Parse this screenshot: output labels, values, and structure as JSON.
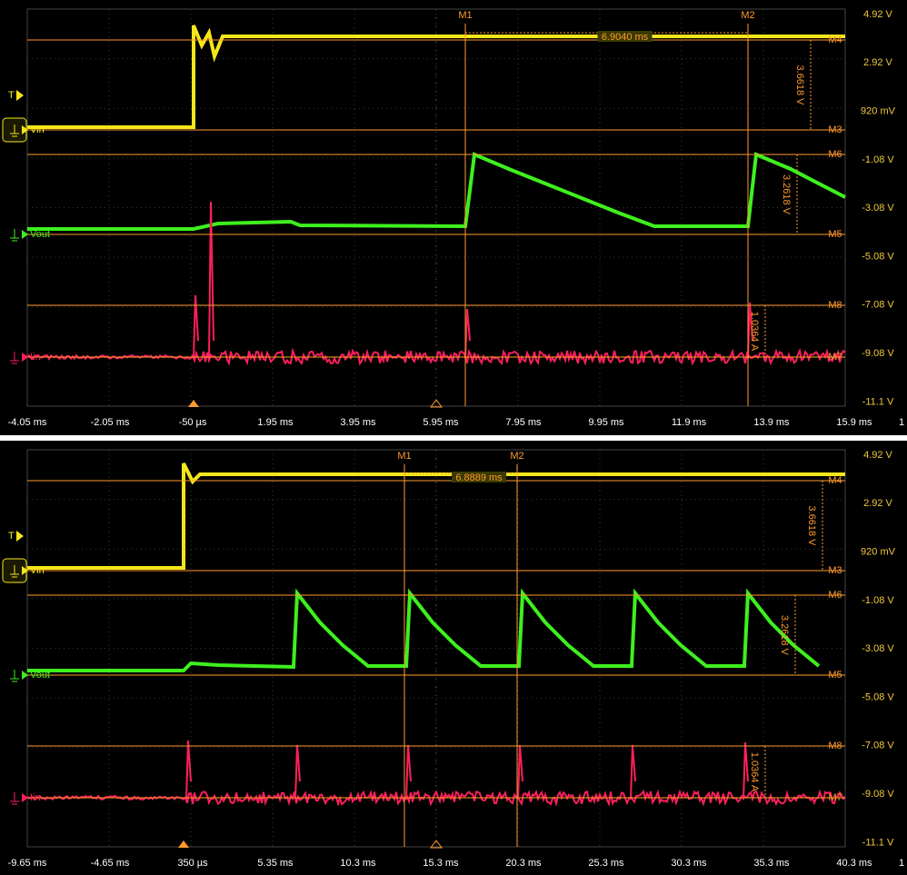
{
  "panels": [
    {
      "x_ticks": [
        "-4.05 ms",
        "-2.05 ms",
        "-50 µs",
        "1.95 ms",
        "3.95 ms",
        "5.95 ms",
        "7.95 ms",
        "9.95 ms",
        "11.9 ms",
        "13.9 ms",
        "15.9 ms"
      ],
      "y_ticks": [
        "4.92 V",
        "2.92 V",
        "920 mV",
        "-1.08 V",
        "-3.08 V",
        "-5.08 V",
        "-7.08 V",
        "-9.08 V",
        "-11.1 V"
      ],
      "h_markers": [
        "M4",
        "M3",
        "M6",
        "M5",
        "M8",
        "M7"
      ],
      "v_markers": [
        "M1",
        "M2"
      ],
      "time_delta": "6.9040 ms",
      "deltas": [
        "3.6618 V",
        "3.2618 V",
        "1.0364 A"
      ],
      "channels": [
        "Vin",
        "Vout",
        "Iin"
      ],
      "trigger": "T",
      "scale": "1"
    },
    {
      "x_ticks": [
        "-9.65 ms",
        "-4.65 ms",
        "350 µs",
        "5.35 ms",
        "10.3 ms",
        "15.3 ms",
        "20.3 ms",
        "25.3 ms",
        "30.3 ms",
        "35.3 ms",
        "40.3 ms"
      ],
      "y_ticks": [
        "4.92 V",
        "2.92 V",
        "920 mV",
        "-1.08 V",
        "-3.08 V",
        "-5.08 V",
        "-7.08 V",
        "-9.08 V",
        "-11.1 V"
      ],
      "h_markers": [
        "M4",
        "M3",
        "M6",
        "M5",
        "M8",
        "M7"
      ],
      "v_markers": [
        "M1",
        "M2"
      ],
      "time_delta": "6.8889 ms",
      "deltas": [
        "3.6618 V",
        "3.2618 V",
        "1.0364 A"
      ],
      "channels": [
        "Vin",
        "Vout",
        "Iin"
      ],
      "trigger": "T",
      "scale": "1"
    }
  ]
}
